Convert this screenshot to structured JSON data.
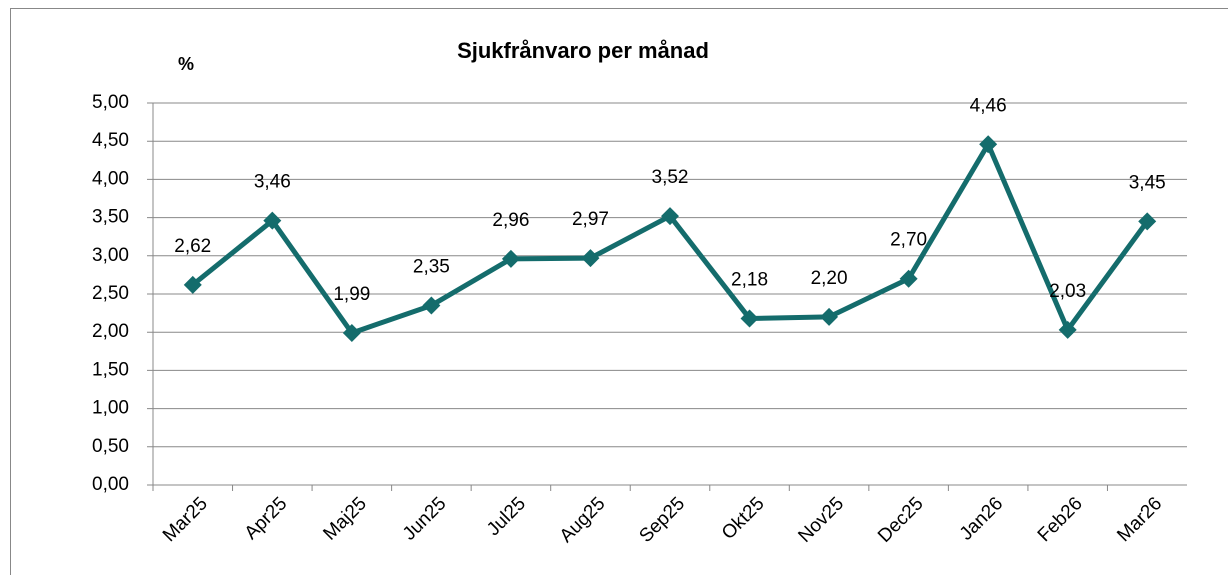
{
  "chart_data": {
    "type": "line",
    "title": "Sjukfrånvaro per månad",
    "y_label": "%",
    "categories": [
      "Mar25",
      "Apr25",
      "Maj25",
      "Jun25",
      "Jul25",
      "Aug25",
      "Sep25",
      "Okt25",
      "Nov25",
      "Dec25",
      "Jan26",
      "Feb26",
      "Mar26"
    ],
    "series": [
      {
        "name": "Sjukfrånvaro",
        "color": "#146c6c",
        "values": [
          2.62,
          3.46,
          1.99,
          2.35,
          2.96,
          2.97,
          3.52,
          2.18,
          2.2,
          2.7,
          4.46,
          2.03,
          3.45
        ],
        "value_labels": [
          "2,62",
          "3,46",
          "1,99",
          "2,35",
          "2,96",
          "2,97",
          "3,52",
          "2,18",
          "2,20",
          "2,70",
          "4,46",
          "2,03",
          "3,45"
        ]
      }
    ],
    "ylim": [
      0,
      5
    ],
    "yticks": [
      {
        "value": 0,
        "label": "0,00"
      },
      {
        "value": 0.5,
        "label": "0,50"
      },
      {
        "value": 1,
        "label": "1,00"
      },
      {
        "value": 1.5,
        "label": "1,50"
      },
      {
        "value": 2,
        "label": "2,00"
      },
      {
        "value": 2.5,
        "label": "2,50"
      },
      {
        "value": 3,
        "label": "3,00"
      },
      {
        "value": 3.5,
        "label": "3,50"
      },
      {
        "value": 4,
        "label": "4,00"
      },
      {
        "value": 4.5,
        "label": "4,50"
      },
      {
        "value": 5,
        "label": "5,00"
      }
    ],
    "grid": true,
    "legend": false
  }
}
